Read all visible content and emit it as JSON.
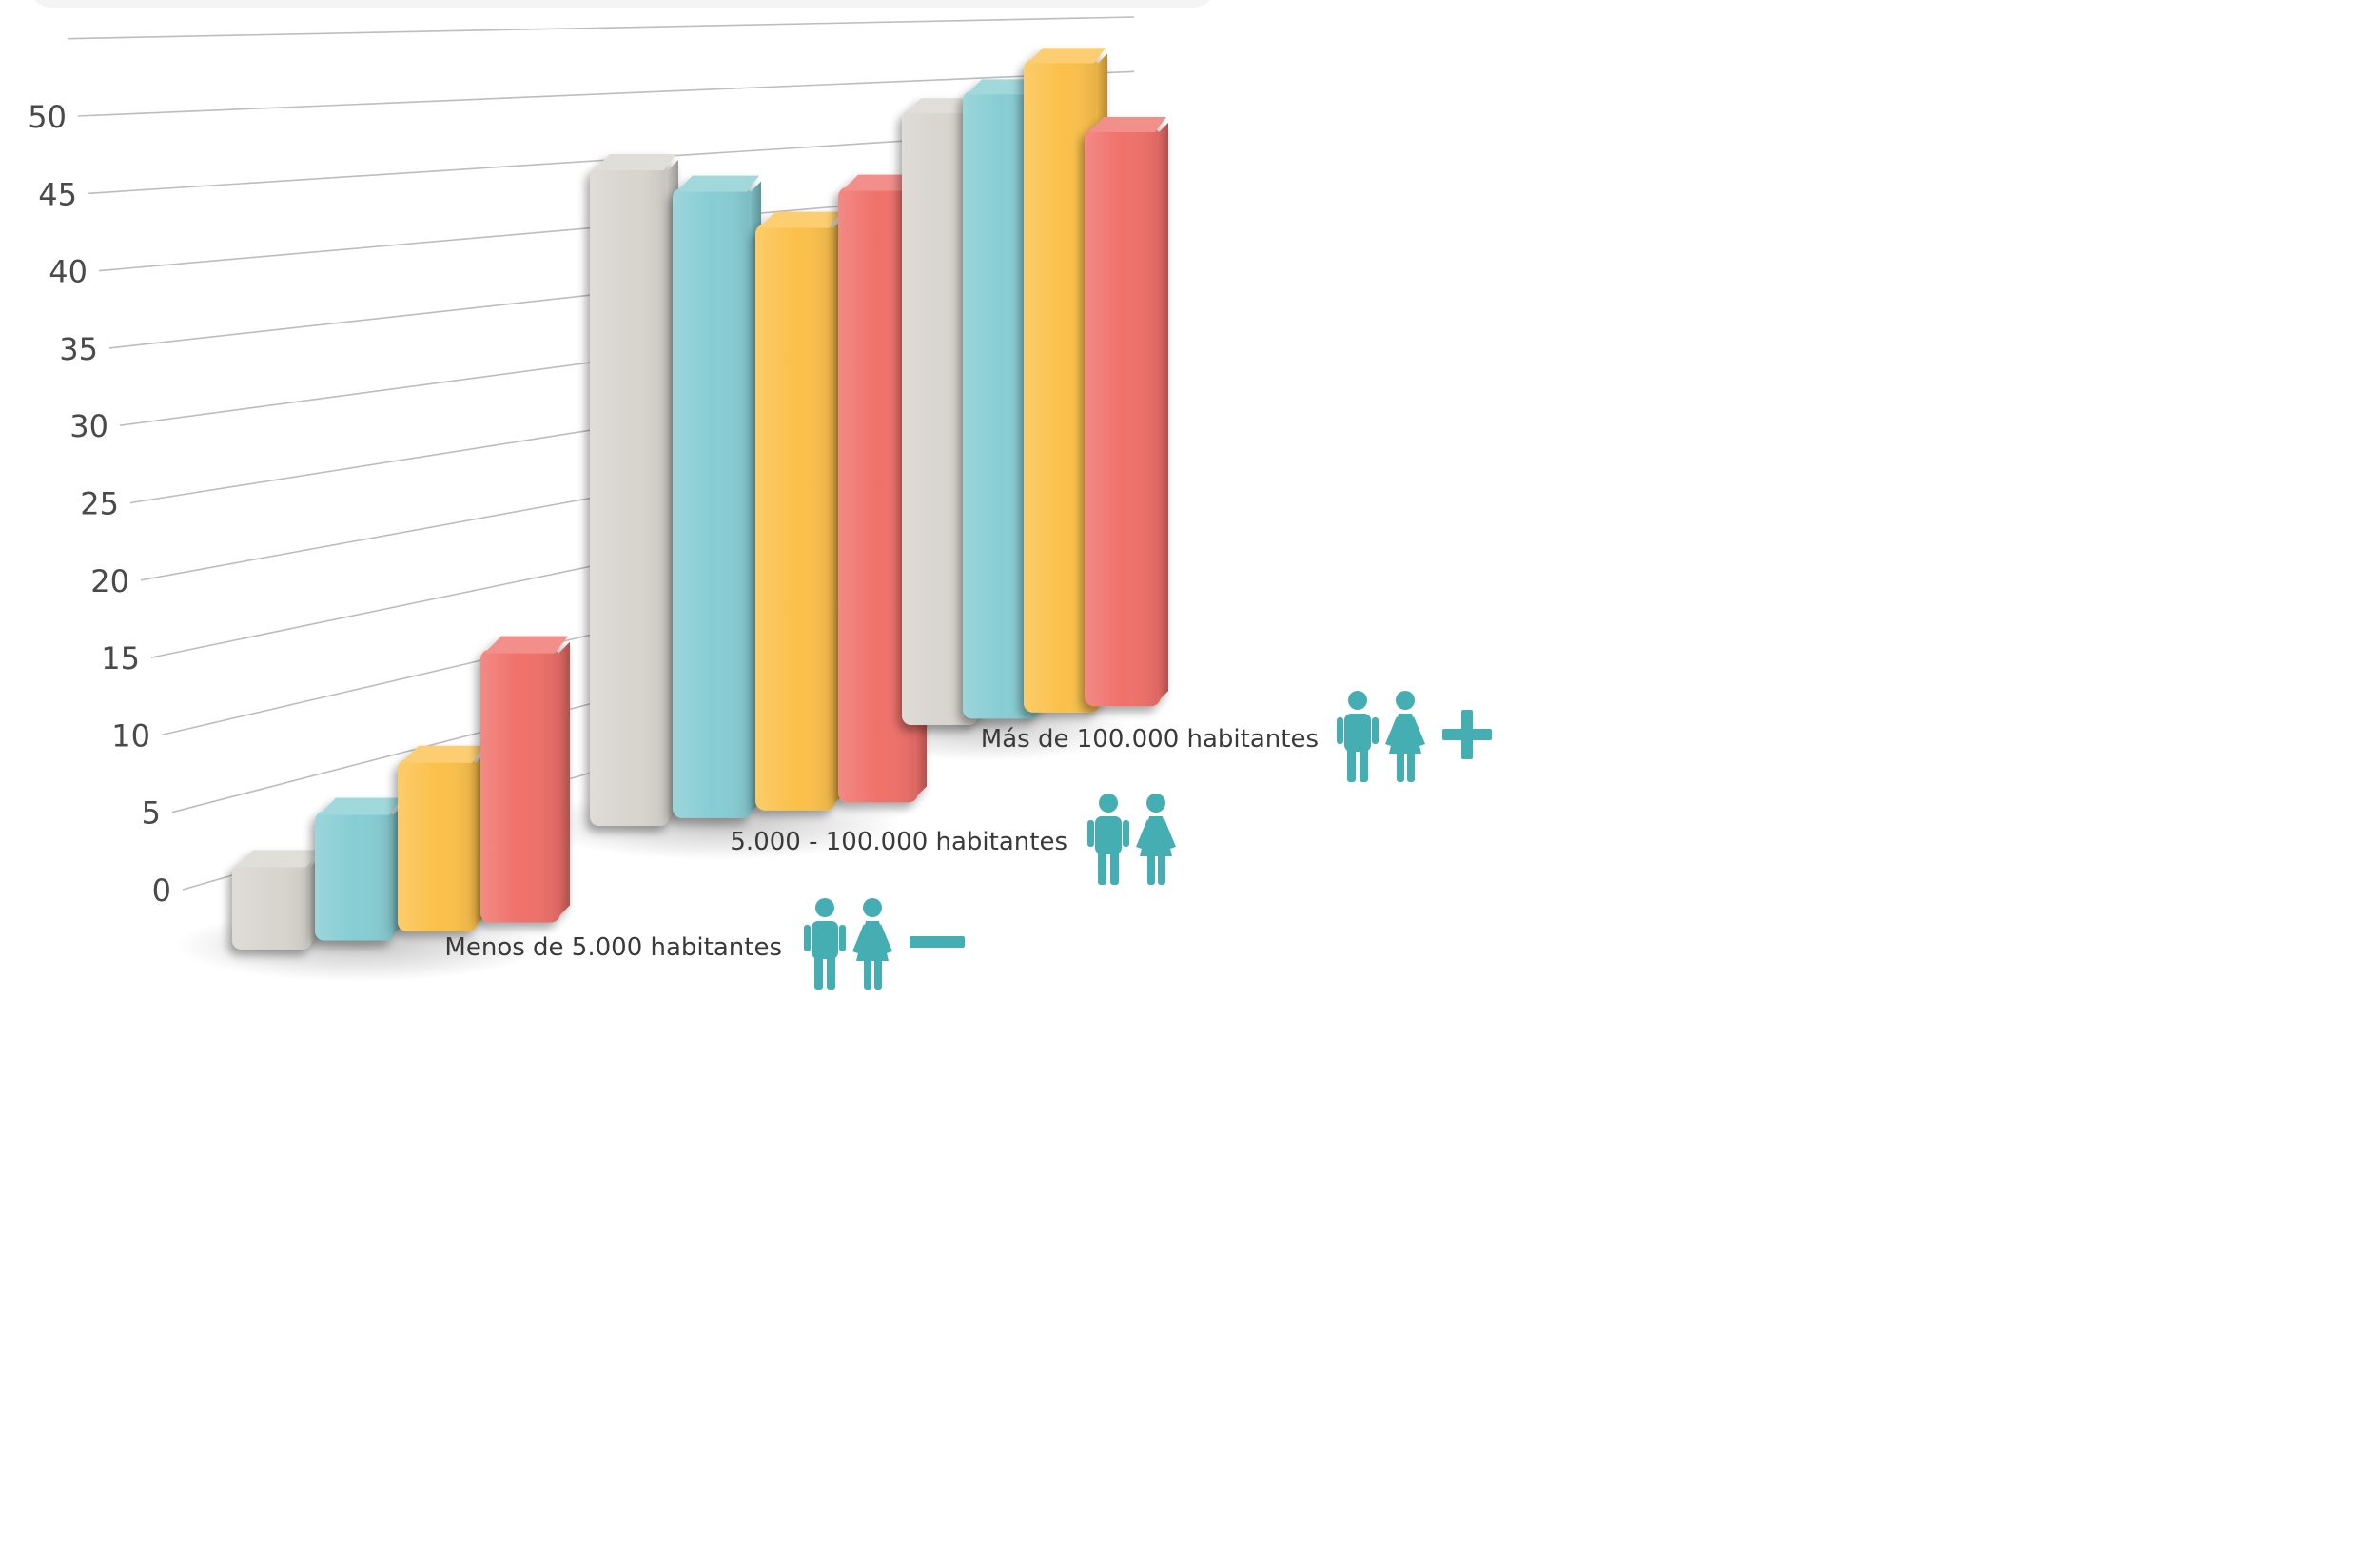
{
  "chart_data": {
    "type": "bar",
    "categories": [
      "Menos de 5.000 habitantes",
      "5.000 - 100.000 habitantes",
      "Más de 100.000 habitantes"
    ],
    "series": [
      {
        "values": [
          6,
          45,
          49
        ],
        "color": "#d8d5cf"
      },
      {
        "values": [
          9,
          43,
          50
        ],
        "color": "#86cdd3"
      },
      {
        "values": [
          12,
          40,
          52
        ],
        "color": "#fbc04a"
      },
      {
        "values": [
          19,
          42,
          46
        ],
        "color": "#f0706a"
      }
    ],
    "yticks": [
      0,
      5,
      10,
      15,
      20,
      25,
      30,
      35,
      40,
      45,
      50
    ],
    "ylim": [
      0,
      55
    ],
    "grid": true,
    "category_icons": [
      "people-minus-icon",
      "people-icon",
      "people-plus-icon"
    ],
    "icon_color": "#45aeb2"
  }
}
